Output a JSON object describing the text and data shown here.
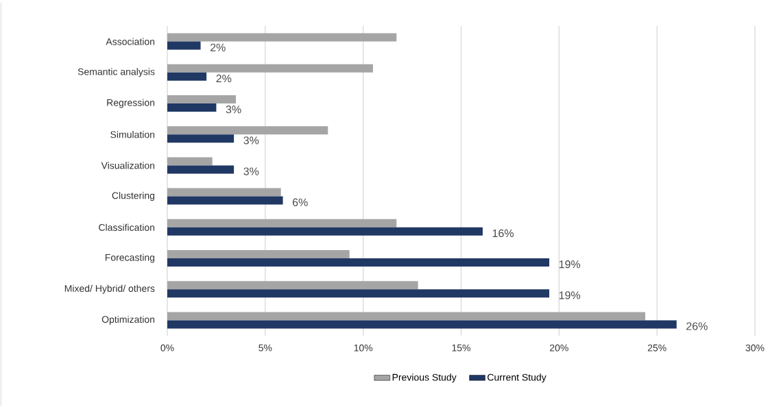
{
  "chart_data": {
    "type": "bar",
    "orientation": "horizontal",
    "categories": [
      "Association",
      "Semantic analysis",
      "Regression",
      "Simulation",
      "Visualization",
      "Clustering",
      "Classification",
      "Forecasting",
      "Mixed/ Hybrid/ others",
      "Optimization"
    ],
    "series": [
      {
        "name": "Previous Study",
        "color": "#a5a5a5",
        "values": [
          11.7,
          10.5,
          3.5,
          8.2,
          2.3,
          5.8,
          11.7,
          9.3,
          12.8,
          24.4
        ]
      },
      {
        "name": "Current Study",
        "color": "#203864",
        "values": [
          1.7,
          2.0,
          2.5,
          3.4,
          3.4,
          5.9,
          16.1,
          19.5,
          19.5,
          26.0
        ],
        "value_labels": [
          "2%",
          "2%",
          "3%",
          "3%",
          "3%",
          "6%",
          "16%",
          "19%",
          "19%",
          "26%"
        ]
      }
    ],
    "xlim": [
      0,
      30
    ],
    "xticks": [
      {
        "value": 0,
        "label": "0%"
      },
      {
        "value": 5,
        "label": "5%"
      },
      {
        "value": 10,
        "label": "10%"
      },
      {
        "value": 15,
        "label": "15%"
      },
      {
        "value": 20,
        "label": "20%"
      },
      {
        "value": 25,
        "label": "25%"
      },
      {
        "value": 30,
        "label": "30%"
      }
    ],
    "grid": "x",
    "legend": "bottom"
  }
}
